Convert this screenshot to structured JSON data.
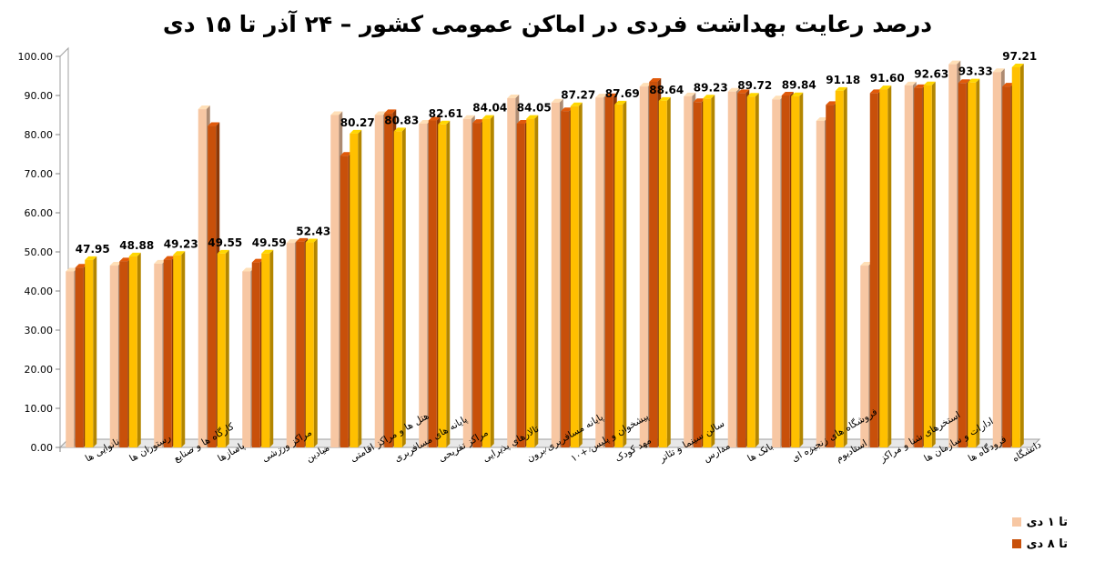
{
  "chart_data": {
    "type": "bar",
    "title": "درصد رعایت بهداشت فردی در اماکن عمومی کشور – ۲۴ آذر تا ۱۵ دی",
    "ylim": [
      0,
      100
    ],
    "yticks": [
      "0.00",
      "10.00",
      "20.00",
      "30.00",
      "40.00",
      "50.00",
      "60.00",
      "70.00",
      "80.00",
      "90.00",
      "100.00"
    ],
    "categories": [
      "نانوایی ها",
      "رستوران ها",
      "کارگاه ها و صنایع ",
      "پاسازها",
      "مراکز ورزشی",
      "میادین",
      "هتل ها و مراکز اقامتی",
      "پایانه های مسافربری ",
      "مراکز تفریحی ",
      "تالارهای پذیرایی",
      "پایانه مسافربری برون ",
      "پیشخوان و پلیس +۱۰",
      "مهد کودک",
      "سالن سینما و تئاتر",
      "مدارس",
      "بانک ها",
      "فروشگاه های زنجیره ای",
      "استادیوم",
      "استخرهای شنا و مراکز ",
      "ادارات و سازمان ها",
      "فرودگاه ها",
      "دانشگاه"
    ],
    "series": [
      {
        "name": "تا ۱ دی",
        "color": "#F7C7A3",
        "values": [
          45.0,
          46.5,
          47.0,
          86.5,
          45.0,
          52.3,
          85.0,
          85.0,
          82.8,
          84.0,
          89.3,
          88.2,
          89.5,
          92.3,
          89.8,
          91.0,
          89.0,
          83.5,
          46.5,
          92.6,
          98.0,
          96.0
        ]
      },
      {
        "name": "تا ۸ دی",
        "color": "#C8500A",
        "values": [
          46.0,
          47.6,
          48.0,
          82.2,
          47.3,
          52.6,
          74.6,
          85.5,
          83.6,
          83.0,
          82.8,
          86.0,
          89.6,
          93.5,
          88.3,
          90.6,
          90.0,
          87.6,
          90.6,
          91.9,
          93.2,
          92.3
        ]
      },
      {
        "name": "",
        "color": "#FFC000",
        "values": [
          47.95,
          48.88,
          49.23,
          49.55,
          49.59,
          52.43,
          80.27,
          80.83,
          82.61,
          84.04,
          84.05,
          87.27,
          87.69,
          88.64,
          89.23,
          89.72,
          89.84,
          91.18,
          91.6,
          92.63,
          93.33,
          97.21
        ]
      }
    ],
    "data_labels": [
      "47.95",
      "48.88",
      "49.23",
      "49.55",
      "49.59",
      "52.43",
      "80.27",
      "80.83",
      "82.61",
      "84.04",
      "84.05",
      "87.27",
      "87.69",
      "88.64",
      "89.23",
      "89.72",
      "89.84",
      "91.18",
      "91.60",
      "92.63",
      "93.33",
      "97.21"
    ],
    "legend_position": "bottom-right",
    "grid": false
  },
  "legend": {
    "item1": "تا ۱ دی",
    "item2": "تا ۸ دی"
  },
  "colors": {
    "series1": "#F7C7A3",
    "series2": "#C8500A",
    "series3": "#FFC000"
  }
}
